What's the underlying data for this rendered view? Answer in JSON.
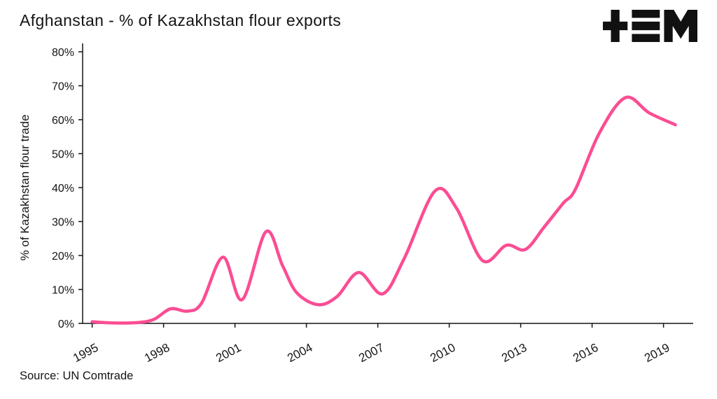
{
  "header": {
    "title": "Afghanstan - % of Kazakhstan flour exports",
    "logo_name": "tem-logo"
  },
  "footer": {
    "source": "Source: UN Comtrade"
  },
  "colors": {
    "line": "#fb4d93",
    "axis": "#141414",
    "background": "#ffffff",
    "logo": "#111111"
  },
  "chart_data": {
    "type": "line",
    "title": "Afghanstan - % of Kazakhstan flour exports",
    "xlabel": "",
    "ylabel": "% of Kazakhstan flour trade",
    "source": "Source: UN Comtrade",
    "xlim": [
      1994.6,
      2020.1
    ],
    "ylim": [
      0,
      80
    ],
    "x_ticks": [
      1995,
      1998,
      2001,
      2004,
      2007,
      2010,
      2013,
      2016,
      2019
    ],
    "y_ticks": [
      0,
      10,
      20,
      30,
      40,
      50,
      60,
      70,
      80
    ],
    "y_tick_suffix": "%",
    "grid": false,
    "legend": "none",
    "series": [
      {
        "name": "Afghanistan share of Kazakhstan flour exports",
        "points": [
          [
            1995.0,
            0.5
          ],
          [
            1995.6,
            0.2
          ],
          [
            1996.3,
            0.1
          ],
          [
            1997.0,
            0.3
          ],
          [
            1997.6,
            1.2
          ],
          [
            1998.3,
            4.3
          ],
          [
            1999.0,
            3.6
          ],
          [
            1999.6,
            6.0
          ],
          [
            2000.5,
            19.5
          ],
          [
            2001.3,
            7.0
          ],
          [
            2002.3,
            27.0
          ],
          [
            2003.0,
            17.0
          ],
          [
            2003.6,
            9.0
          ],
          [
            2004.5,
            5.5
          ],
          [
            2005.3,
            8.0
          ],
          [
            2006.2,
            15.0
          ],
          [
            2007.2,
            8.7
          ],
          [
            2008.1,
            19.0
          ],
          [
            2009.4,
            39.0
          ],
          [
            2010.3,
            34.0
          ],
          [
            2011.4,
            18.5
          ],
          [
            2012.4,
            23.0
          ],
          [
            2013.2,
            21.8
          ],
          [
            2014.0,
            28.5
          ],
          [
            2014.8,
            35.5
          ],
          [
            2015.3,
            39.5
          ],
          [
            2016.3,
            56.0
          ],
          [
            2017.4,
            66.5
          ],
          [
            2018.4,
            62.0
          ],
          [
            2019.5,
            58.5
          ]
        ]
      }
    ]
  }
}
